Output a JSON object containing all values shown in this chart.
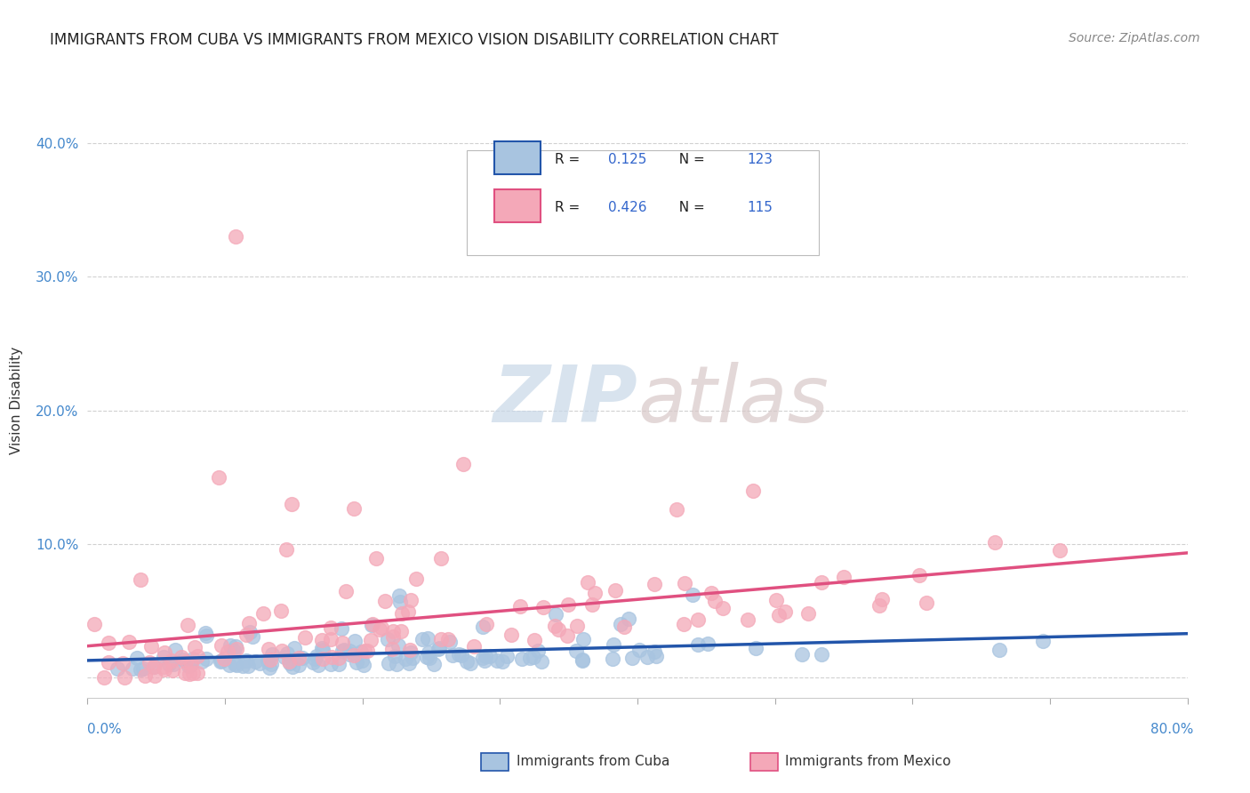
{
  "title": "IMMIGRANTS FROM CUBA VS IMMIGRANTS FROM MEXICO VISION DISABILITY CORRELATION CHART",
  "source": "Source: ZipAtlas.com",
  "ylabel": "Vision Disability",
  "xlim": [
    0.0,
    0.8
  ],
  "ylim": [
    -0.015,
    0.43
  ],
  "cuba_R": 0.125,
  "cuba_N": 123,
  "mexico_R": 0.426,
  "mexico_N": 115,
  "cuba_color": "#a8c4e0",
  "mexico_color": "#f4a8b8",
  "cuba_line_color": "#2255aa",
  "mexico_line_color": "#e05080",
  "legend_label_cuba": "Immigrants from Cuba",
  "legend_label_mexico": "Immigrants from Mexico",
  "watermark_zip": "ZIP",
  "watermark_atlas": "atlas",
  "background_color": "#ffffff",
  "title_fontsize": 12,
  "source_fontsize": 10,
  "axis_label_fontsize": 11,
  "tick_fontsize": 11,
  "legend_fontsize": 11,
  "tick_color": "#4488cc",
  "text_color": "#222222",
  "grid_color": "#cccccc",
  "legend_value_color": "#3366cc"
}
